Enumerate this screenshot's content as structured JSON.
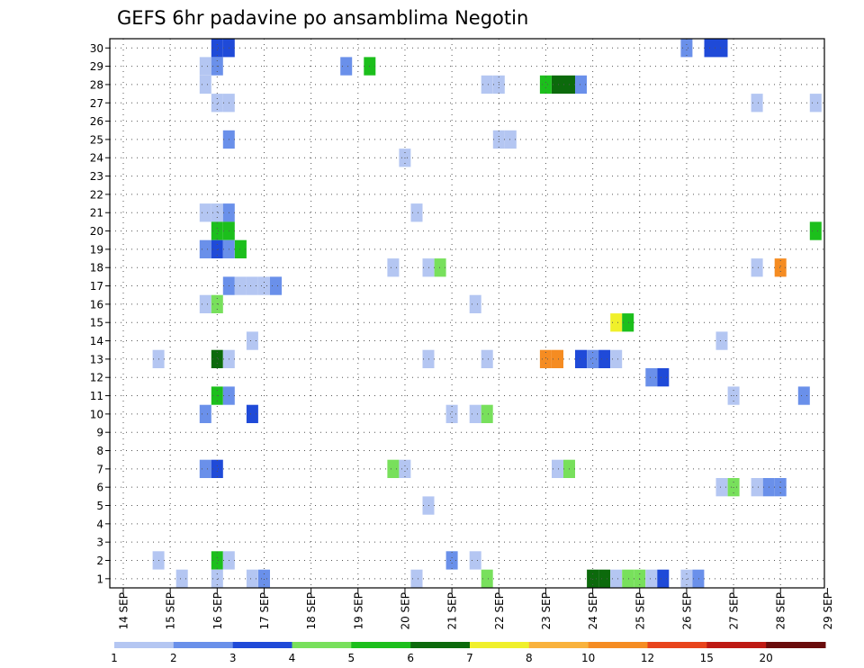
{
  "chart_data": {
    "type": "heatmap",
    "title": "GEFS 6hr padavine po ansamblima Negotin",
    "x_tick_labels": [
      "14 SEP",
      "15 SEP",
      "16 SEP",
      "17 SEP",
      "18 SEP",
      "19 SEP",
      "20 SEP",
      "21 SEP",
      "22 SEP",
      "23 SEP",
      "24 SEP",
      "25 SEP",
      "26 SEP",
      "27 SEP",
      "28 SEP",
      "29 SEP"
    ],
    "y_tick_labels": [
      "1",
      "2",
      "3",
      "4",
      "5",
      "6",
      "7",
      "8",
      "9",
      "10",
      "11",
      "12",
      "13",
      "14",
      "15",
      "16",
      "17",
      "18",
      "19",
      "20",
      "21",
      "22",
      "23",
      "24",
      "25",
      "26",
      "27",
      "28",
      "29",
      "30"
    ],
    "y_range": [
      1,
      30
    ],
    "grid": "dotted",
    "colorbar": {
      "labels": [
        "1",
        "2",
        "3",
        "4",
        "5",
        "6",
        "7",
        "8",
        "10",
        "12",
        "15",
        "20"
      ],
      "colors": [
        "#b4c6f2",
        "#6a90ea",
        "#1f4ad8",
        "#78e05c",
        "#1cbf1c",
        "#0c6a0c",
        "#f0f02a",
        "#f9b23c",
        "#f58c22",
        "#e8441c",
        "#be1a14",
        "#6a0c0c"
      ]
    },
    "cells": [
      {
        "d": "16.0",
        "m": 30,
        "v": 3
      },
      {
        "d": "16.25",
        "m": 30,
        "v": 3
      },
      {
        "d": "26.0",
        "m": 30,
        "v": 2
      },
      {
        "d": "26.5",
        "m": 30,
        "v": 3
      },
      {
        "d": "26.75",
        "m": 30,
        "v": 3
      },
      {
        "d": "15.75",
        "m": 29,
        "v": 1
      },
      {
        "d": "16.0",
        "m": 29,
        "v": 2
      },
      {
        "d": "18.75",
        "m": 29,
        "v": 2
      },
      {
        "d": "19.25",
        "m": 29,
        "v": 5
      },
      {
        "d": "15.75",
        "m": 28,
        "v": 1
      },
      {
        "d": "21.75",
        "m": 28,
        "v": 1
      },
      {
        "d": "22.0",
        "m": 28,
        "v": 1
      },
      {
        "d": "23.0",
        "m": 28,
        "v": 5
      },
      {
        "d": "23.25",
        "m": 28,
        "v": 6
      },
      {
        "d": "23.5",
        "m": 28,
        "v": 6
      },
      {
        "d": "23.75",
        "m": 28,
        "v": 2
      },
      {
        "d": "16.0",
        "m": 27,
        "v": 1
      },
      {
        "d": "16.25",
        "m": 27,
        "v": 1
      },
      {
        "d": "27.5",
        "m": 27,
        "v": 1
      },
      {
        "d": "28.75",
        "m": 27,
        "v": 1
      },
      {
        "d": "16.25",
        "m": 25,
        "v": 2
      },
      {
        "d": "22.0",
        "m": 25,
        "v": 1
      },
      {
        "d": "22.25",
        "m": 25,
        "v": 1
      },
      {
        "d": "20.0",
        "m": 24,
        "v": 1
      },
      {
        "d": "15.75",
        "m": 21,
        "v": 1
      },
      {
        "d": "16.0",
        "m": 21,
        "v": 1
      },
      {
        "d": "16.25",
        "m": 21,
        "v": 2
      },
      {
        "d": "20.25",
        "m": 21,
        "v": 1
      },
      {
        "d": "16.0",
        "m": 20,
        "v": 5
      },
      {
        "d": "16.25",
        "m": 20,
        "v": 5
      },
      {
        "d": "28.75",
        "m": 20,
        "v": 5
      },
      {
        "d": "15.75",
        "m": 19,
        "v": 2
      },
      {
        "d": "16.0",
        "m": 19,
        "v": 3
      },
      {
        "d": "16.25",
        "m": 19,
        "v": 2
      },
      {
        "d": "16.5",
        "m": 19,
        "v": 5
      },
      {
        "d": "19.75",
        "m": 18,
        "v": 1
      },
      {
        "d": "20.5",
        "m": 18,
        "v": 1
      },
      {
        "d": "20.75",
        "m": 18,
        "v": 4
      },
      {
        "d": "27.5",
        "m": 18,
        "v": 1
      },
      {
        "d": "28.0",
        "m": 18,
        "v": 10
      },
      {
        "d": "16.25",
        "m": 17,
        "v": 2
      },
      {
        "d": "16.5",
        "m": 17,
        "v": 1
      },
      {
        "d": "16.75",
        "m": 17,
        "v": 1
      },
      {
        "d": "17.0",
        "m": 17,
        "v": 1
      },
      {
        "d": "17.25",
        "m": 17,
        "v": 2
      },
      {
        "d": "15.75",
        "m": 16,
        "v": 1
      },
      {
        "d": "16.0",
        "m": 16,
        "v": 4
      },
      {
        "d": "21.5",
        "m": 16,
        "v": 1
      },
      {
        "d": "24.5",
        "m": 15,
        "v": 7
      },
      {
        "d": "24.75",
        "m": 15,
        "v": 5
      },
      {
        "d": "16.75",
        "m": 14,
        "v": 1
      },
      {
        "d": "26.75",
        "m": 14,
        "v": 1
      },
      {
        "d": "14.75",
        "m": 13,
        "v": 1
      },
      {
        "d": "16.0",
        "m": 13,
        "v": 6
      },
      {
        "d": "16.25",
        "m": 13,
        "v": 1
      },
      {
        "d": "20.5",
        "m": 13,
        "v": 1
      },
      {
        "d": "21.75",
        "m": 13,
        "v": 1
      },
      {
        "d": "23.0",
        "m": 13,
        "v": 10
      },
      {
        "d": "23.25",
        "m": 13,
        "v": 10
      },
      {
        "d": "23.75",
        "m": 13,
        "v": 3
      },
      {
        "d": "24.0",
        "m": 13,
        "v": 2
      },
      {
        "d": "24.25",
        "m": 13,
        "v": 3
      },
      {
        "d": "24.5",
        "m": 13,
        "v": 1
      },
      {
        "d": "25.25",
        "m": 12,
        "v": 2
      },
      {
        "d": "25.5",
        "m": 12,
        "v": 3
      },
      {
        "d": "16.0",
        "m": 11,
        "v": 5
      },
      {
        "d": "16.25",
        "m": 11,
        "v": 2
      },
      {
        "d": "27.0",
        "m": 11,
        "v": 1
      },
      {
        "d": "28.5",
        "m": 11,
        "v": 2
      },
      {
        "d": "15.75",
        "m": 10,
        "v": 2
      },
      {
        "d": "16.75",
        "m": 10,
        "v": 3
      },
      {
        "d": "21.0",
        "m": 10,
        "v": 1
      },
      {
        "d": "21.5",
        "m": 10,
        "v": 1
      },
      {
        "d": "21.75",
        "m": 10,
        "v": 4
      },
      {
        "d": "15.75",
        "m": 7,
        "v": 2
      },
      {
        "d": "16.0",
        "m": 7,
        "v": 3
      },
      {
        "d": "19.75",
        "m": 7,
        "v": 4
      },
      {
        "d": "20.0",
        "m": 7,
        "v": 1
      },
      {
        "d": "23.25",
        "m": 7,
        "v": 1
      },
      {
        "d": "23.5",
        "m": 7,
        "v": 4
      },
      {
        "d": "26.75",
        "m": 6,
        "v": 1
      },
      {
        "d": "27.0",
        "m": 6,
        "v": 4
      },
      {
        "d": "27.5",
        "m": 6,
        "v": 1
      },
      {
        "d": "27.75",
        "m": 6,
        "v": 2
      },
      {
        "d": "28.0",
        "m": 6,
        "v": 2
      },
      {
        "d": "20.5",
        "m": 5,
        "v": 1
      },
      {
        "d": "14.75",
        "m": 2,
        "v": 1
      },
      {
        "d": "16.0",
        "m": 2,
        "v": 5
      },
      {
        "d": "16.25",
        "m": 2,
        "v": 1
      },
      {
        "d": "21.0",
        "m": 2,
        "v": 2
      },
      {
        "d": "21.5",
        "m": 2,
        "v": 1
      },
      {
        "d": "15.25",
        "m": 1,
        "v": 1
      },
      {
        "d": "16.0",
        "m": 1,
        "v": 1
      },
      {
        "d": "16.75",
        "m": 1,
        "v": 1
      },
      {
        "d": "17.0",
        "m": 1,
        "v": 2
      },
      {
        "d": "20.25",
        "m": 1,
        "v": 1
      },
      {
        "d": "21.75",
        "m": 1,
        "v": 4
      },
      {
        "d": "24.0",
        "m": 1,
        "v": 6
      },
      {
        "d": "24.25",
        "m": 1,
        "v": 6
      },
      {
        "d": "24.5",
        "m": 1,
        "v": 1
      },
      {
        "d": "24.75",
        "m": 1,
        "v": 4
      },
      {
        "d": "25.0",
        "m": 1,
        "v": 4
      },
      {
        "d": "25.25",
        "m": 1,
        "v": 1
      },
      {
        "d": "25.5",
        "m": 1,
        "v": 3
      },
      {
        "d": "26.0",
        "m": 1,
        "v": 1
      },
      {
        "d": "26.25",
        "m": 1,
        "v": 2
      }
    ]
  }
}
